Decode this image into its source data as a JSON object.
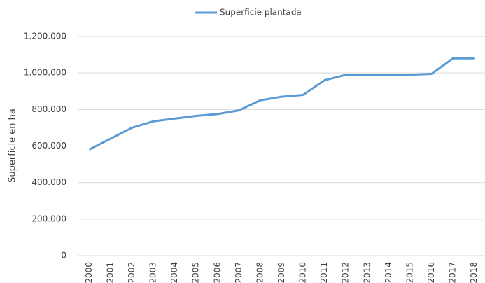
{
  "chart_data": {
    "type": "line",
    "ylabel": "Superficie en ha",
    "categories": [
      "2000",
      "2001",
      "2002",
      "2003",
      "2004",
      "2005",
      "2006",
      "2007",
      "2008",
      "2009",
      "2010",
      "2011",
      "2012",
      "2013",
      "2014",
      "2015",
      "2016",
      "2017",
      "2018"
    ],
    "series": [
      {
        "name": "Superficie plantada",
        "color": "#5b9bd5",
        "values": [
          580000,
          640000,
          700000,
          735000,
          750000,
          765000,
          775000,
          795000,
          850000,
          870000,
          880000,
          960000,
          990000,
          990000,
          990000,
          990000,
          995000,
          1080000,
          1080000
        ]
      }
    ],
    "ylim": [
      0,
      1200000
    ],
    "yticks": [
      0,
      {
        "value": 200000,
        "label": "200.000"
      },
      {
        "value": 400000,
        "label": "400.000"
      },
      {
        "value": 600000,
        "label": "600.000"
      },
      {
        "value": 800000,
        "label": "800.000"
      },
      {
        "value": 1000000,
        "label": "1.000.000"
      },
      {
        "value": 1200000,
        "label": "1.200.000"
      }
    ],
    "grid": true,
    "legend": "top"
  }
}
